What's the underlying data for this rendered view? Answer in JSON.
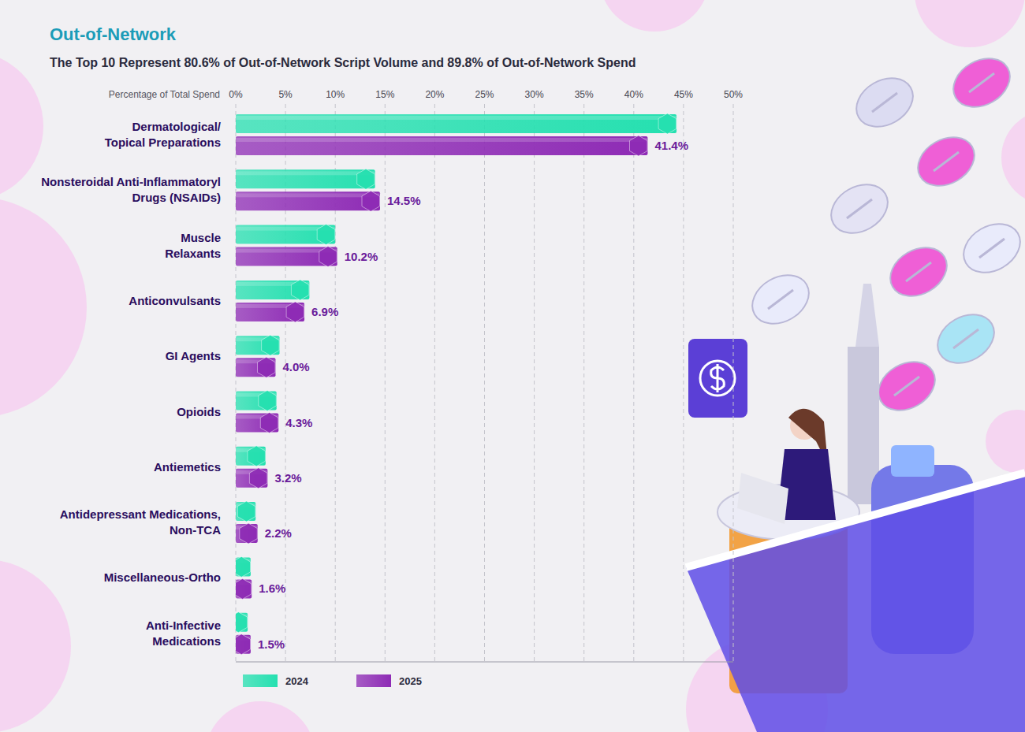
{
  "chart_data": {
    "type": "bar",
    "orientation": "horizontal",
    "title": "Out-of-Network",
    "subtitle": "The Top 10 Represent 80.6% of Out-of-Network Script Volume and 89.8% of Out-of-Network Spend",
    "x_label": "Percentage of Total Spend",
    "categories": [
      "Dermatological/\nTopical Preparations",
      "Nonsteroidal Anti-Inflammatoryl\nDrugs (NSAIDs)",
      "Muscle\nRelaxants",
      "Anticonvulsants",
      "GI Agents",
      "Opioids",
      "Antiemetics",
      "Antidepressant Medications,\nNon-TCA",
      "Miscellaneous-Ortho",
      "Anti-Infective\nMedications"
    ],
    "series": [
      {
        "name": "2024",
        "color": "#25e0b0",
        "values": [
          44.3,
          14.0,
          10.0,
          7.4,
          4.4,
          4.1,
          3.0,
          2.0,
          1.5,
          1.2
        ]
      },
      {
        "name": "2025",
        "color": "#8e2bb5",
        "values": [
          41.4,
          14.5,
          10.2,
          6.9,
          4.0,
          4.3,
          3.2,
          2.2,
          1.6,
          1.5
        ],
        "value_labels": [
          "41.4%",
          "14.5%",
          "10.2%",
          "6.9%",
          "4.0%",
          "4.3%",
          "3.2%",
          "2.2%",
          "1.6%",
          "1.5%"
        ]
      }
    ],
    "xlim": [
      0,
      50
    ],
    "xticks": [
      {
        "value": 0,
        "label": "0%"
      },
      {
        "value": 5,
        "label": "5%"
      },
      {
        "value": 10,
        "label": "10%"
      },
      {
        "value": 15,
        "label": "15%"
      },
      {
        "value": 20,
        "label": "20%"
      },
      {
        "value": 25,
        "label": "25%"
      },
      {
        "value": 30,
        "label": "30%"
      },
      {
        "value": 35,
        "label": "35%"
      },
      {
        "value": 40,
        "label": "40%"
      },
      {
        "value": 45,
        "label": "45%"
      },
      {
        "value": 50,
        "label": "50%"
      }
    ],
    "grid": true,
    "data_labels": true,
    "legend": "bottom"
  }
}
